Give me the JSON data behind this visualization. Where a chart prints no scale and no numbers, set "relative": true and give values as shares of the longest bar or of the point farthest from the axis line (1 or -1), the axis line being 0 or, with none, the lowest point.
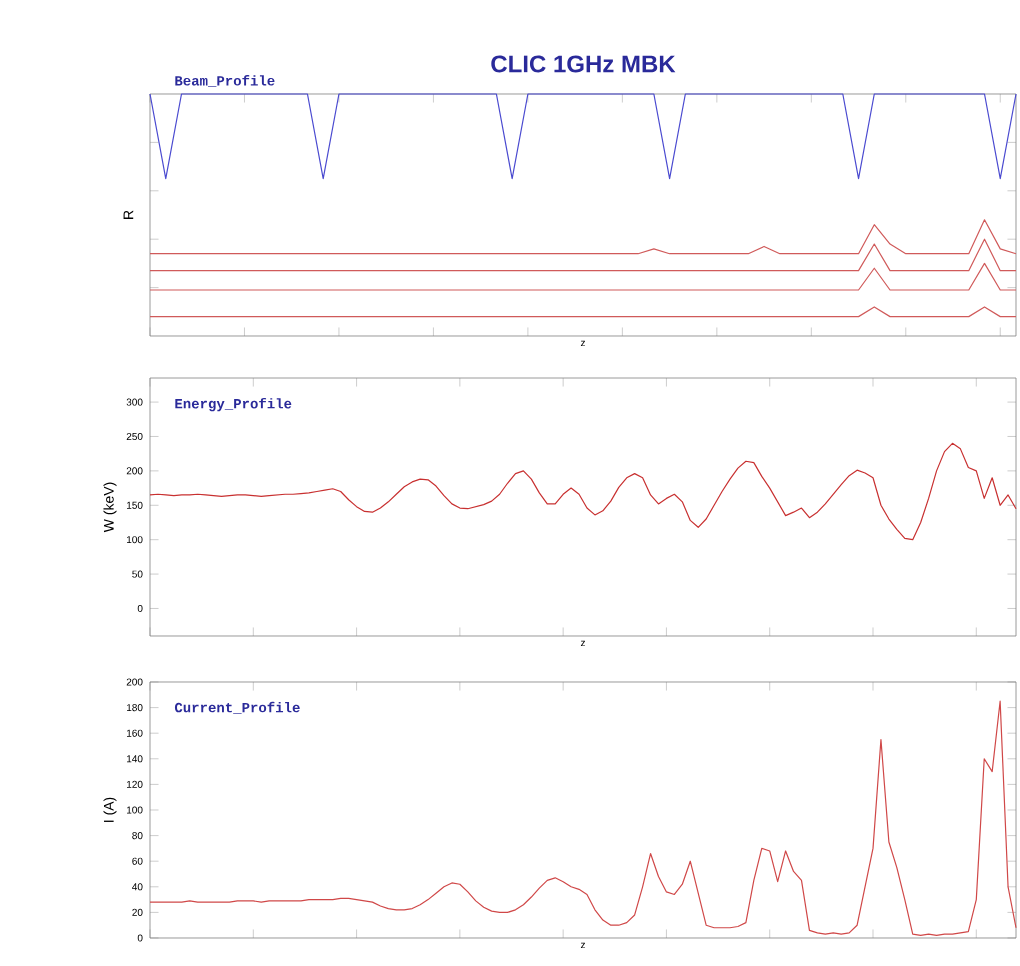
{
  "chart_data": [
    {
      "type": "line",
      "title": "CLIC 1GHz MBK",
      "ylabel": "R",
      "xlabel": "z",
      "annotations": [
        "Beam_Profile"
      ],
      "relative": true,
      "tick_labels": false,
      "categories": [
        null,
        null,
        null,
        null,
        null,
        null,
        null,
        null,
        null,
        null,
        null,
        null,
        null,
        null,
        null,
        null,
        null,
        null,
        null,
        null,
        null,
        null,
        null,
        null,
        null,
        null,
        null,
        null,
        null,
        null,
        null,
        null,
        null,
        null,
        null,
        null,
        null,
        null,
        null,
        null,
        null,
        null,
        null,
        null,
        null,
        null,
        null,
        null,
        null,
        null,
        null,
        null,
        null,
        null,
        null,
        null
      ],
      "series": [
        {
          "color": "#4a4ad0",
          "values": [
            1,
            0.65,
            1,
            1,
            1,
            1,
            1,
            1,
            1,
            1,
            1,
            0.65,
            1,
            1,
            1,
            1,
            1,
            1,
            1,
            1,
            1,
            1,
            1,
            0.65,
            1,
            1,
            1,
            1,
            1,
            1,
            1,
            1,
            1,
            0.65,
            1,
            1,
            1,
            1,
            1,
            1,
            1,
            1,
            1,
            1,
            1,
            0.65,
            1,
            1,
            1,
            1,
            1,
            1,
            1,
            1,
            0.65,
            1
          ]
        },
        {
          "color": "#d05a5a",
          "values": [
            0.34,
            0.34,
            0.34,
            0.34,
            0.34,
            0.34,
            0.34,
            0.34,
            0.34,
            0.34,
            0.34,
            0.34,
            0.34,
            0.34,
            0.34,
            0.34,
            0.34,
            0.34,
            0.34,
            0.34,
            0.34,
            0.34,
            0.34,
            0.34,
            0.34,
            0.34,
            0.34,
            0.34,
            0.34,
            0.34,
            0.34,
            0.34,
            0.36,
            0.34,
            0.34,
            0.34,
            0.34,
            0.34,
            0.34,
            0.37,
            0.34,
            0.34,
            0.34,
            0.34,
            0.34,
            0.34,
            0.46,
            0.38,
            0.34,
            0.34,
            0.34,
            0.34,
            0.34,
            0.48,
            0.36,
            0.34
          ]
        },
        {
          "color": "#d05a5a",
          "values": [
            0.27,
            0.27,
            0.27,
            0.27,
            0.27,
            0.27,
            0.27,
            0.27,
            0.27,
            0.27,
            0.27,
            0.27,
            0.27,
            0.27,
            0.27,
            0.27,
            0.27,
            0.27,
            0.27,
            0.27,
            0.27,
            0.27,
            0.27,
            0.27,
            0.27,
            0.27,
            0.27,
            0.27,
            0.27,
            0.27,
            0.27,
            0.27,
            0.27,
            0.27,
            0.27,
            0.27,
            0.27,
            0.27,
            0.27,
            0.27,
            0.27,
            0.27,
            0.27,
            0.27,
            0.27,
            0.27,
            0.38,
            0.27,
            0.27,
            0.27,
            0.27,
            0.27,
            0.27,
            0.4,
            0.27,
            0.27
          ]
        },
        {
          "color": "#d05a5a",
          "values": [
            0.19,
            0.19,
            0.19,
            0.19,
            0.19,
            0.19,
            0.19,
            0.19,
            0.19,
            0.19,
            0.19,
            0.19,
            0.19,
            0.19,
            0.19,
            0.19,
            0.19,
            0.19,
            0.19,
            0.19,
            0.19,
            0.19,
            0.19,
            0.19,
            0.19,
            0.19,
            0.19,
            0.19,
            0.19,
            0.19,
            0.19,
            0.19,
            0.19,
            0.19,
            0.19,
            0.19,
            0.19,
            0.19,
            0.19,
            0.19,
            0.19,
            0.19,
            0.19,
            0.19,
            0.19,
            0.19,
            0.28,
            0.19,
            0.19,
            0.19,
            0.19,
            0.19,
            0.19,
            0.3,
            0.19,
            0.19
          ]
        },
        {
          "color": "#d05a5a",
          "values": [
            0.08,
            0.08,
            0.08,
            0.08,
            0.08,
            0.08,
            0.08,
            0.08,
            0.08,
            0.08,
            0.08,
            0.08,
            0.08,
            0.08,
            0.08,
            0.08,
            0.08,
            0.08,
            0.08,
            0.08,
            0.08,
            0.08,
            0.08,
            0.08,
            0.08,
            0.08,
            0.08,
            0.08,
            0.08,
            0.08,
            0.08,
            0.08,
            0.08,
            0.08,
            0.08,
            0.08,
            0.08,
            0.08,
            0.08,
            0.08,
            0.08,
            0.08,
            0.08,
            0.08,
            0.08,
            0.08,
            0.12,
            0.08,
            0.08,
            0.08,
            0.08,
            0.08,
            0.08,
            0.12,
            0.08,
            0.08
          ]
        }
      ]
    },
    {
      "type": "line",
      "ylabel": "W (keV)",
      "xlabel": "z",
      "annotations": [
        "Energy_Profile"
      ],
      "tick_labels": "y",
      "ylim": [
        -40,
        335
      ],
      "yticks": [
        0,
        50,
        100,
        150,
        200,
        250,
        300
      ],
      "categories": [
        null,
        null,
        null,
        null,
        null,
        null,
        null,
        null,
        null,
        null,
        null,
        null,
        null,
        null,
        null,
        null,
        null,
        null,
        null,
        null,
        null,
        null,
        null,
        null,
        null,
        null,
        null,
        null,
        null,
        null,
        null,
        null,
        null,
        null,
        null,
        null,
        null,
        null,
        null,
        null,
        null,
        null,
        null,
        null,
        null,
        null,
        null,
        null,
        null,
        null,
        null,
        null,
        null,
        null,
        null,
        null,
        null,
        null,
        null,
        null,
        null,
        null,
        null,
        null,
        null,
        null,
        null,
        null,
        null,
        null,
        null,
        null,
        null,
        null,
        null,
        null,
        null,
        null,
        null,
        null,
        null,
        null,
        null,
        null,
        null,
        null,
        null,
        null,
        null,
        null,
        null,
        null,
        null,
        null,
        null,
        null,
        null,
        null,
        null,
        null,
        null,
        null,
        null,
        null,
        null,
        null,
        null,
        null,
        null,
        null
      ],
      "series": [
        {
          "color": "#c83030",
          "values": [
            165,
            166,
            165,
            164,
            165,
            165,
            166,
            165,
            164,
            163,
            164,
            165,
            165,
            164,
            163,
            164,
            165,
            166,
            166,
            167,
            168,
            170,
            172,
            174,
            170,
            158,
            148,
            141,
            140,
            146,
            155,
            166,
            177,
            184,
            188,
            187,
            178,
            164,
            152,
            146,
            145,
            148,
            151,
            156,
            166,
            182,
            196,
            200,
            188,
            168,
            152,
            152,
            166,
            175,
            166,
            146,
            136,
            142,
            156,
            176,
            190,
            196,
            190,
            165,
            152,
            160,
            166,
            155,
            128,
            118,
            130,
            150,
            170,
            188,
            204,
            214,
            212,
            192,
            175,
            155,
            135,
            140,
            146,
            132,
            140,
            152,
            166,
            180,
            193,
            201,
            197,
            190,
            150,
            130,
            115,
            102,
            100,
            125,
            160,
            200,
            228,
            240,
            232,
            205,
            200,
            160,
            190,
            150,
            165,
            145
          ]
        }
      ]
    },
    {
      "type": "line",
      "ylabel": "I (A)",
      "xlabel": "z",
      "annotations": [
        "Current_Profile"
      ],
      "tick_labels": "y",
      "ylim": [
        0,
        200
      ],
      "yticks": [
        0,
        20,
        40,
        60,
        80,
        100,
        120,
        140,
        160,
        180,
        200
      ],
      "categories": [
        null,
        null,
        null,
        null,
        null,
        null,
        null,
        null,
        null,
        null,
        null,
        null,
        null,
        null,
        null,
        null,
        null,
        null,
        null,
        null,
        null,
        null,
        null,
        null,
        null,
        null,
        null,
        null,
        null,
        null,
        null,
        null,
        null,
        null,
        null,
        null,
        null,
        null,
        null,
        null,
        null,
        null,
        null,
        null,
        null,
        null,
        null,
        null,
        null,
        null,
        null,
        null,
        null,
        null,
        null,
        null,
        null,
        null,
        null,
        null,
        null,
        null,
        null,
        null,
        null,
        null,
        null,
        null,
        null,
        null,
        null,
        null,
        null,
        null,
        null,
        null,
        null,
        null,
        null,
        null,
        null,
        null,
        null,
        null,
        null,
        null,
        null,
        null,
        null,
        null,
        null,
        null,
        null,
        null,
        null,
        null,
        null,
        null,
        null,
        null,
        null,
        null,
        null,
        null,
        null,
        null,
        null,
        null,
        null,
        null
      ],
      "series": [
        {
          "color": "#d04848",
          "values": [
            28,
            28,
            28,
            28,
            28,
            29,
            28,
            28,
            28,
            28,
            28,
            29,
            29,
            29,
            28,
            29,
            29,
            29,
            29,
            29,
            30,
            30,
            30,
            30,
            31,
            31,
            30,
            29,
            28,
            25,
            23,
            22,
            22,
            23,
            26,
            30,
            35,
            40,
            43,
            42,
            36,
            29,
            24,
            21,
            20,
            20,
            22,
            26,
            32,
            39,
            45,
            47,
            44,
            40,
            38,
            34,
            22,
            14,
            10,
            10,
            12,
            18,
            40,
            66,
            48,
            36,
            34,
            42,
            60,
            35,
            10,
            8,
            8,
            8,
            9,
            12,
            45,
            70,
            68,
            44,
            68,
            52,
            45,
            6,
            4,
            3,
            4,
            3,
            4,
            10,
            40,
            70,
            155,
            75,
            55,
            30,
            3,
            2,
            3,
            2,
            3,
            3,
            4,
            5,
            30,
            140,
            130,
            185,
            40,
            8
          ]
        }
      ]
    }
  ]
}
